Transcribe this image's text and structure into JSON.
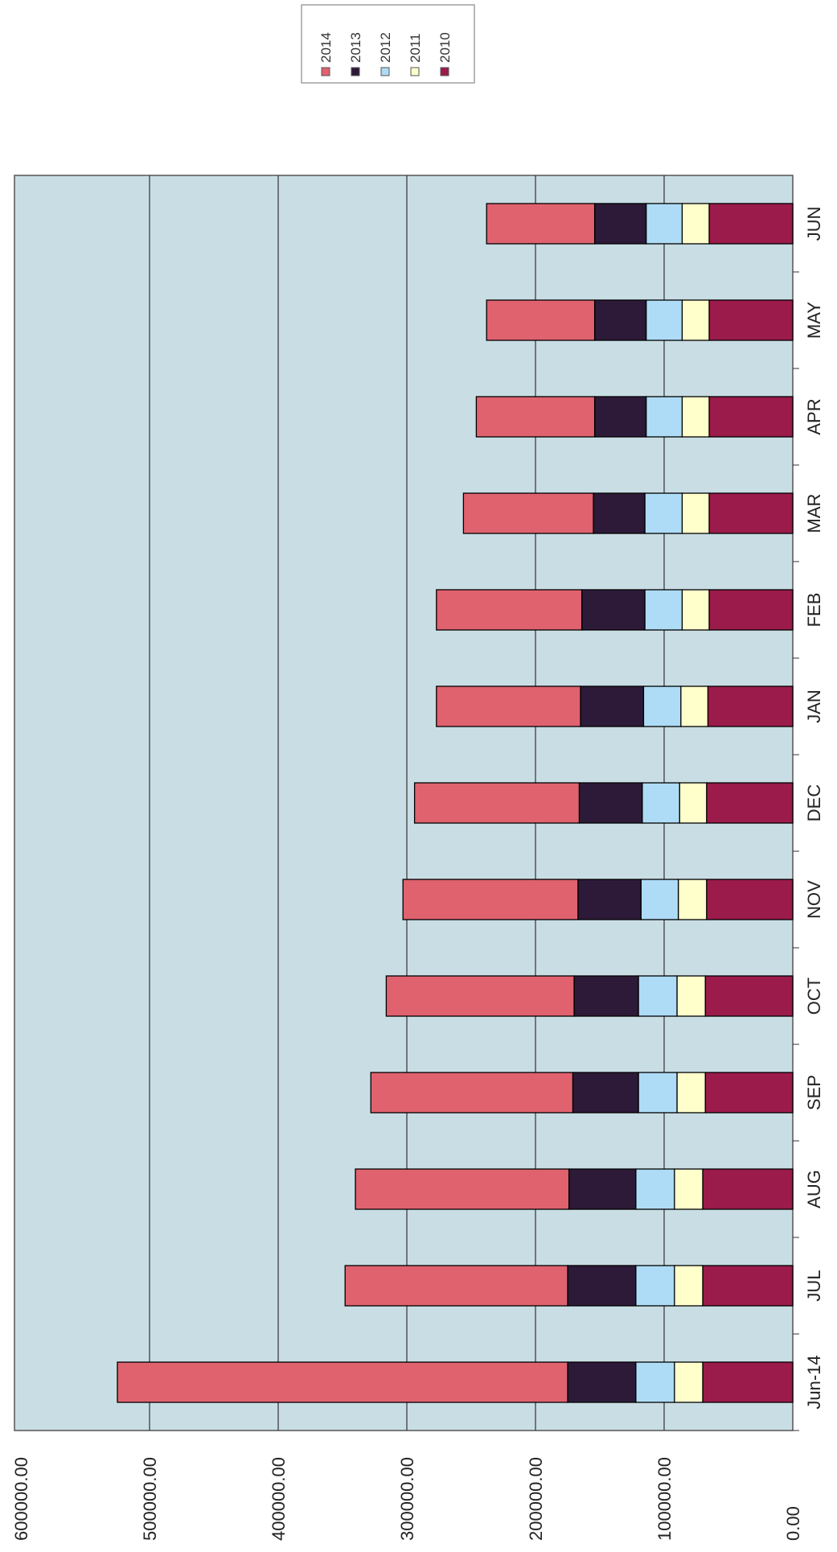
{
  "chart_data": {
    "type": "bar",
    "stacked": true,
    "orientation": "vertical (page rotated 90° counter-clockwise)",
    "categories": [
      "Jun-14",
      "JUL",
      "AUG",
      "SEP",
      "OCT",
      "NOV",
      "DEC",
      "JAN",
      "FEB",
      "MAR",
      "APR",
      "MAY",
      "JUN"
    ],
    "series": [
      {
        "name": "2010",
        "color": "#9b1b4b",
        "values": [
          70000,
          70000,
          70000,
          68000,
          68000,
          67000,
          67000,
          66000,
          65000,
          65000,
          65000,
          65000,
          65000
        ]
      },
      {
        "name": "2011",
        "color": "#ffffcc",
        "values": [
          22000,
          22000,
          22000,
          22000,
          22000,
          22000,
          21000,
          21000,
          21000,
          21000,
          21000,
          21000,
          21000
        ]
      },
      {
        "name": "2012",
        "color": "#aedcf6",
        "values": [
          30000,
          30000,
          30000,
          30000,
          30000,
          29000,
          29000,
          29000,
          29000,
          29000,
          28000,
          28000,
          28000
        ]
      },
      {
        "name": "2013",
        "color": "#2d1a38",
        "values": [
          53000,
          53000,
          52000,
          51000,
          50000,
          49000,
          49000,
          49000,
          49000,
          40000,
          40000,
          40000,
          40000
        ]
      },
      {
        "name": "2014",
        "color": "#e0626f",
        "values": [
          350000,
          173000,
          166000,
          157000,
          146000,
          136000,
          128000,
          112000,
          113000,
          101000,
          92000,
          84000,
          84000
        ]
      }
    ],
    "legend_order": [
      "2014",
      "2013",
      "2012",
      "2011",
      "2010"
    ],
    "y_ticks": [
      "0.00",
      "100000.00",
      "200000.00",
      "300000.00",
      "400000.00",
      "500000.00",
      "600000.00"
    ],
    "ylim": [
      0,
      600000
    ],
    "grid": true,
    "plot_background": "#c9dde4",
    "legend_position": "top-right"
  }
}
